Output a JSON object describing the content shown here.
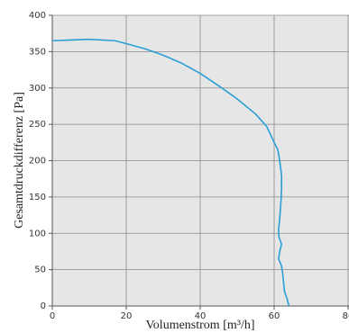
{
  "chart_data": {
    "type": "line",
    "x_label": "Volumenstrom [m³/h]",
    "y_label": "Gesamtdruckdifferenz [Pa]",
    "x": [
      0,
      5,
      10,
      17,
      20,
      25,
      30,
      35,
      40,
      45,
      50,
      55,
      58,
      59,
      60,
      61,
      61.5,
      62,
      62,
      61.8,
      61.5,
      61.2,
      61.3,
      62,
      61.5,
      61.2,
      62,
      62.3,
      62.5,
      62.8,
      63.5,
      64
    ],
    "series": [
      {
        "color": "#2a9fd6",
        "values": [
          365,
          366,
          367,
          365,
          361,
          354,
          345,
          334,
          320,
          303,
          285,
          264,
          247,
          236,
          225,
          215,
          200,
          180,
          160,
          140,
          120,
          105,
          95,
          85,
          75,
          65,
          55,
          45,
          35,
          20,
          10,
          0
        ]
      }
    ],
    "xlim": [
      0,
      80
    ],
    "xticks": [
      0,
      20,
      40,
      60,
      80
    ],
    "ylim": [
      0,
      400
    ],
    "yticks": [
      0,
      50,
      100,
      150,
      200,
      250,
      300,
      350,
      400
    ],
    "grid": true
  }
}
